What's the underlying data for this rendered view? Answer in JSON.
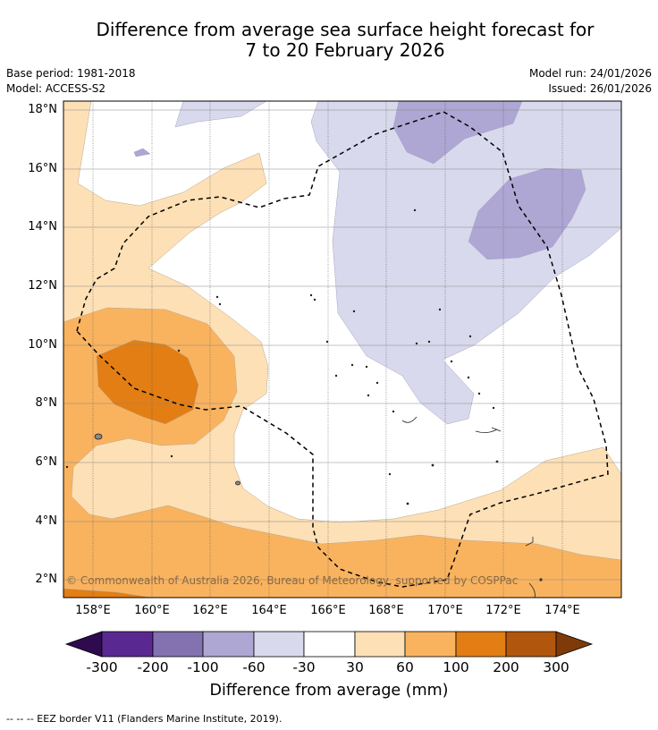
{
  "title_line1": "Difference from average sea surface height forecast for",
  "title_line2": "7 to 20 February 2026",
  "base_period": "Base period: 1981-2018",
  "model": "Model: ACCESS-S2",
  "model_run": "Model run: 24/01/2026",
  "issued": "Issued: 26/01/2026",
  "lat_labels": [
    "18°N",
    "16°N",
    "14°N",
    "12°N",
    "10°N",
    "8°N",
    "6°N",
    "4°N",
    "2°N"
  ],
  "lon_labels": [
    "158°E",
    "160°E",
    "162°E",
    "164°E",
    "166°E",
    "168°E",
    "170°E",
    "172°E",
    "174°E"
  ],
  "copyright": "© Commonwealth of Australia 2026, Bureau of Meteorology, supported by COSPPac",
  "colorbar": {
    "ticks": [
      "-300",
      "-200",
      "-100",
      "-60",
      "-30",
      "30",
      "60",
      "100",
      "200",
      "300"
    ],
    "colors": [
      "#2f0a4e",
      "#5a2891",
      "#8372b0",
      "#aea6d3",
      "#d8d9ec",
      "#ffffff",
      "#fde0b5",
      "#f9b35f",
      "#e27e14",
      "#b0570d",
      "#7e3b09"
    ],
    "label": "Difference from average (mm)"
  },
  "footnote": "--  --  -- EEZ border V11 (Flanders Marine Institute, 2019)."
}
